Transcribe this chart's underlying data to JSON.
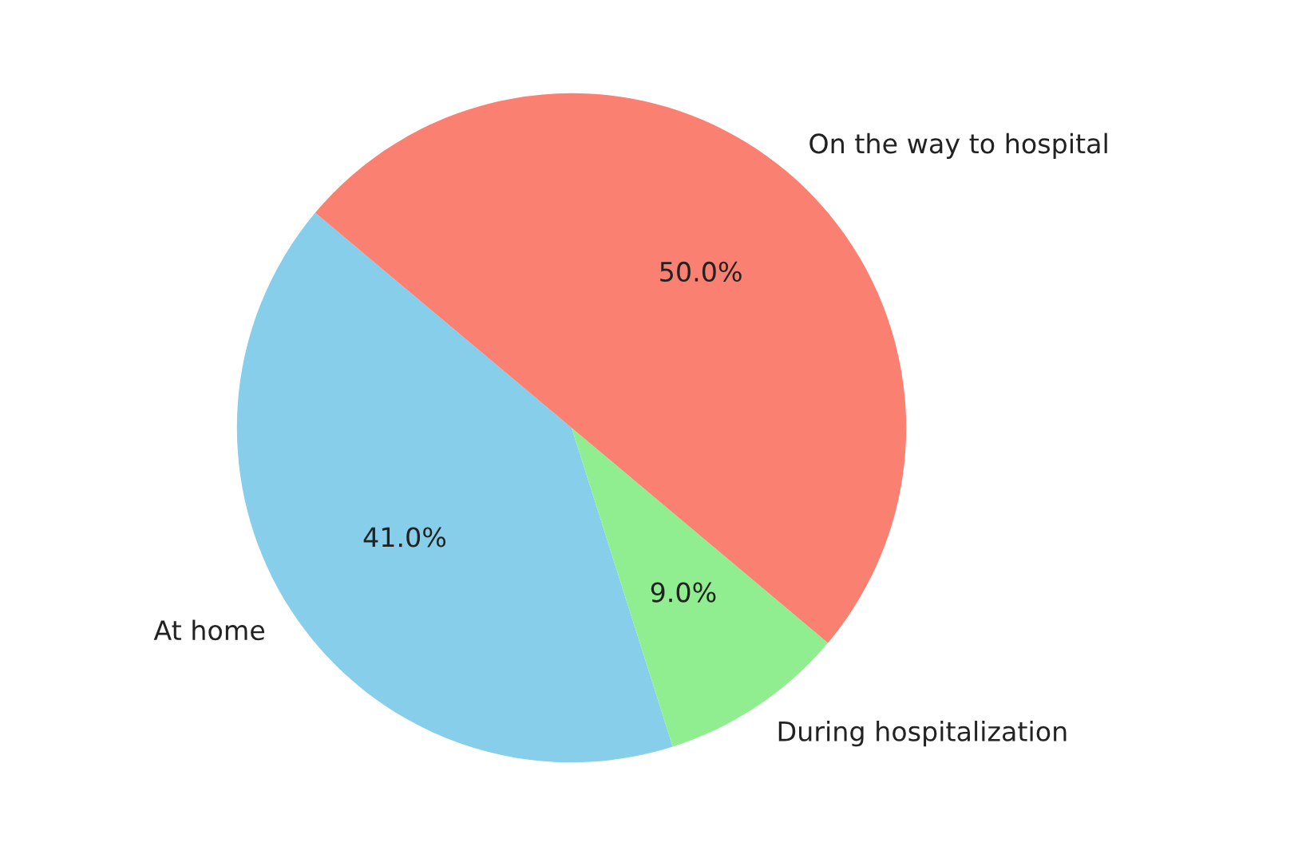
{
  "chart_data": {
    "type": "pie",
    "categories": [
      "At home",
      "During hospitalization",
      "On the way to hospital"
    ],
    "values": [
      41,
      9,
      50
    ],
    "value_labels": [
      "41.0%",
      "9.0%",
      "50.0%"
    ],
    "colors": [
      "#87ceeb",
      "#90ee90",
      "#fa8072"
    ]
  }
}
